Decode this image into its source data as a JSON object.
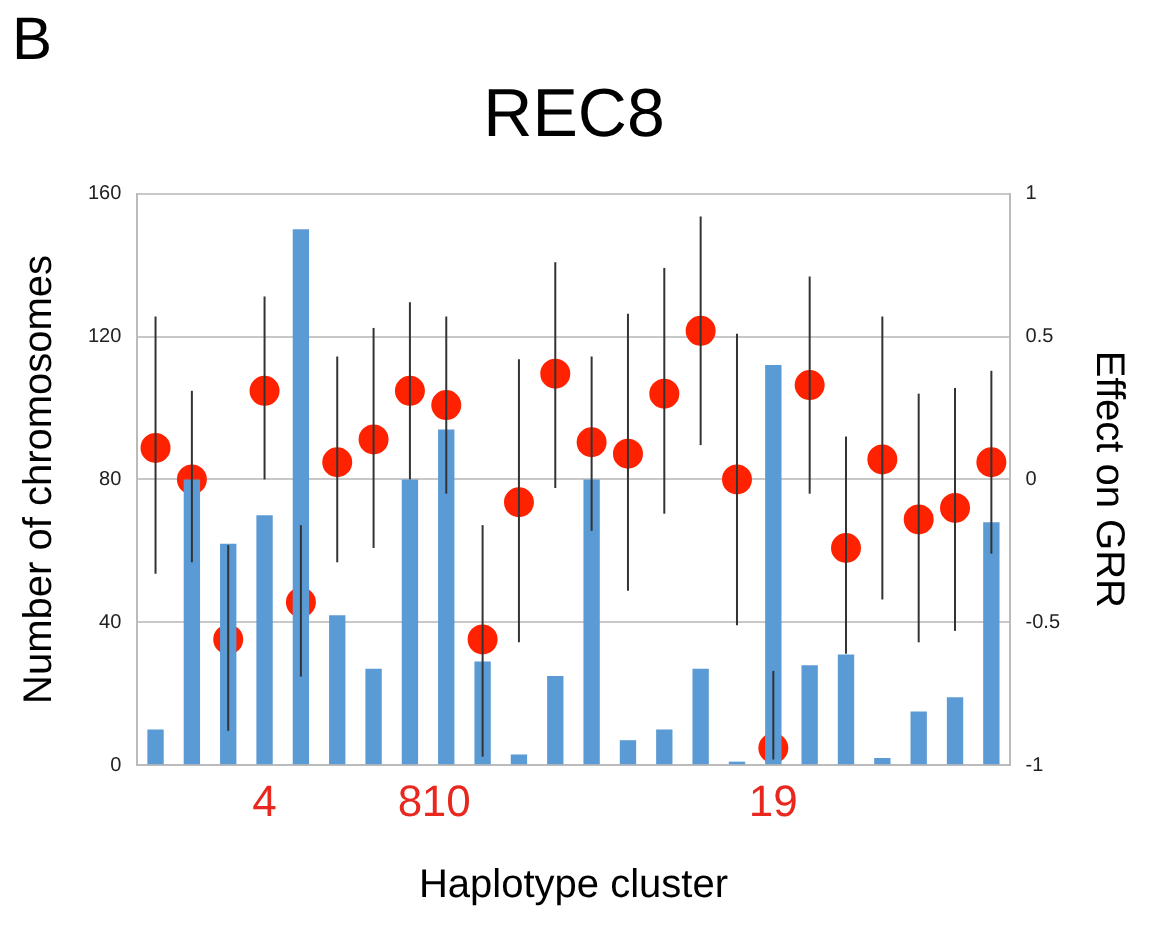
{
  "chart_data": {
    "type": "bar",
    "title": "REC8",
    "xlabel": "Haplotype cluster",
    "ylabel": "Number of chromosomes",
    "y2label": "Effect on GRR",
    "annotations": [
      "B"
    ],
    "categories": [
      null,
      null,
      null,
      "4",
      null,
      null,
      null,
      "8",
      "10",
      null,
      null,
      null,
      null,
      null,
      null,
      null,
      null,
      "19",
      null,
      null,
      null,
      null,
      null,
      null
    ],
    "series": [
      {
        "color": "#5b9bd5",
        "values": [
          10,
          80,
          62,
          70,
          150,
          42,
          27,
          80,
          94,
          29,
          3,
          25,
          80,
          7,
          10,
          27,
          1,
          112,
          28,
          31,
          2,
          15,
          19,
          68
        ]
      },
      {
        "type": "scatter",
        "axis": "y2",
        "color": "#ff2200",
        "marker": "circle",
        "values": [
          0.11,
          0.0,
          -0.56,
          0.31,
          -0.43,
          0.06,
          0.14,
          0.31,
          0.26,
          -0.56,
          -0.08,
          0.37,
          0.13,
          0.09,
          0.3,
          0.52,
          0.0,
          -0.94,
          0.33,
          -0.24,
          0.07,
          -0.14,
          -0.1,
          0.06
        ],
        "errors": [
          [
            -0.33,
            0.57
          ],
          [
            -0.29,
            0.31
          ],
          [
            -0.88,
            -0.23
          ],
          [
            0.0,
            0.64
          ],
          [
            -0.69,
            -0.16
          ],
          [
            -0.29,
            0.43
          ],
          [
            -0.24,
            0.53
          ],
          [
            0.0,
            0.62
          ],
          [
            -0.05,
            0.57
          ],
          [
            -0.97,
            -0.16
          ],
          [
            -0.57,
            0.42
          ],
          [
            -0.03,
            0.76
          ],
          [
            -0.18,
            0.43
          ],
          [
            -0.39,
            0.58
          ],
          [
            -0.12,
            0.74
          ],
          [
            0.12,
            0.92
          ],
          [
            -0.51,
            0.51
          ],
          [
            -0.98,
            -0.67
          ],
          [
            -0.05,
            0.71
          ],
          [
            -0.61,
            0.15
          ],
          [
            -0.42,
            0.57
          ],
          [
            -0.57,
            0.3
          ],
          [
            -0.53,
            0.32
          ],
          [
            -0.26,
            0.38
          ]
        ]
      }
    ],
    "ylim": [
      0,
      160
    ],
    "yticks": [
      0,
      40,
      80,
      120,
      160
    ],
    "y2lim": [
      -1,
      1
    ],
    "y2ticks": [
      -1,
      -0.5,
      0,
      0.5,
      1
    ],
    "grid": "y",
    "legend": false
  }
}
